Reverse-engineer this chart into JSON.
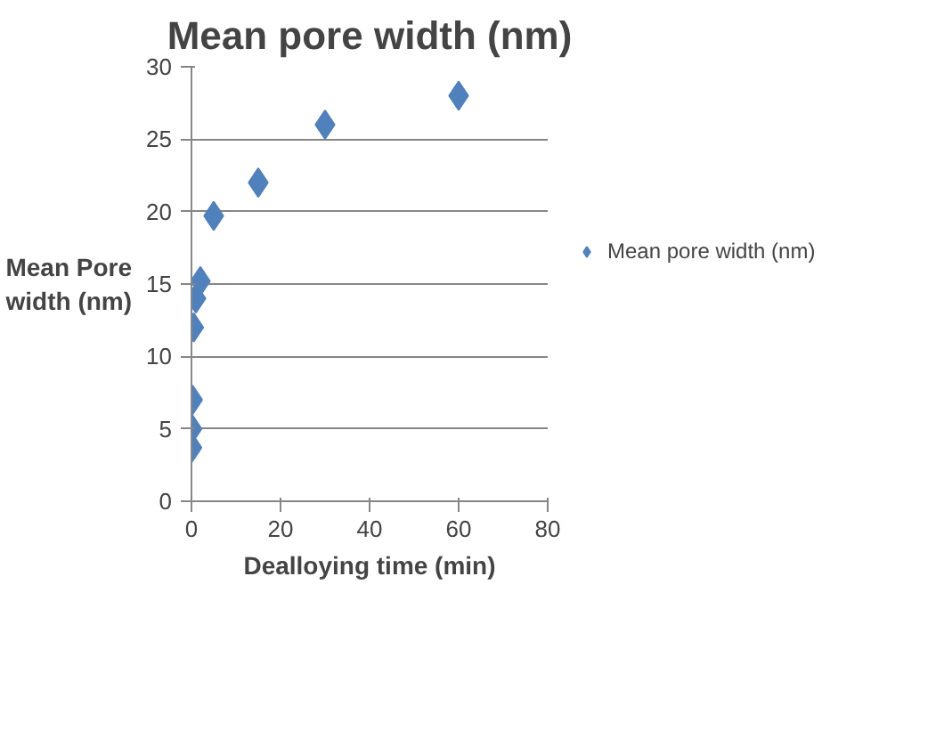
{
  "chart_data": {
    "type": "scatter",
    "title": "Mean pore width (nm)",
    "xlabel": "Dealloying time (min)",
    "ylabel": "Mean Pore\nwidth (nm)",
    "series": [
      {
        "name": "Mean pore width (nm)",
        "color": "#4f81bd",
        "x": [
          0.1,
          0.1,
          0.25,
          0.5,
          1,
          2,
          5,
          15,
          30,
          60
        ],
        "values": [
          3.7,
          5,
          7,
          12,
          14,
          15.2,
          19.7,
          22,
          26,
          28
        ]
      }
    ],
    "xlim": [
      0,
      80
    ],
    "xticks": [
      0,
      20,
      40,
      60,
      80
    ],
    "ylim": [
      0,
      30
    ],
    "yticks": [
      0,
      5,
      10,
      15,
      20,
      25,
      30
    ],
    "grid": "y",
    "legend": "right",
    "marker": "diamond"
  }
}
